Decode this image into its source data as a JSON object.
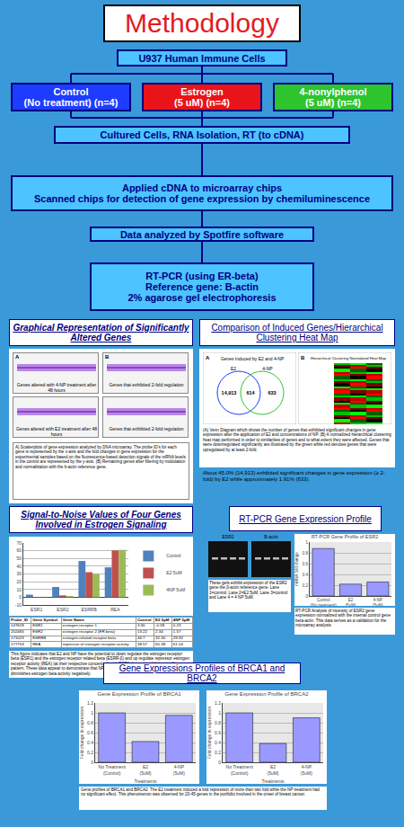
{
  "title": "Methodology",
  "cells": "U937 Human Immune Cells",
  "groups": [
    {
      "label": "Control",
      "sub": "(No treatment) (n=4)",
      "color": "#1e3cff"
    },
    {
      "label": "Estrogen",
      "sub": "(5 uM) (n=4)",
      "color": "#e8141a"
    },
    {
      "label": "4-nonylphenol",
      "sub": "(5 uM) (n=4)",
      "color": "#2ec42e"
    }
  ],
  "steps": [
    [
      "Cultured Cells, RNA Isolation, RT (to cDNA)"
    ],
    [
      "Applied cDNA to microarray chips",
      "Scanned chips for detection of gene expression by chemiluminescence"
    ],
    [
      "Data analyzed by Spotfire software"
    ],
    [
      "RT-PCR (using ER-beta)",
      "Reference gene: B-actin",
      "2% agarose gel electrophoresis"
    ]
  ],
  "graphical": {
    "heading": "Graphical Representation of Significantly Altered Genes",
    "panel_letters": [
      "A",
      "B"
    ],
    "panel_labels": [
      "Genes altered with 4-NP treatment after 48 hours",
      "Genes that exhibited 2-fold regulation",
      "Genes altered with E2 treatment after 48 hours",
      "Genes that exhibited 2-fold regulation"
    ],
    "caption": "A) Scatterplots of gene expression analyzed by DNA microarray. The probe ID's for each gene is represented by the x-axis and the fold changes in gene expression for the experimental samples based on the fluorescence-based detection signals of the mRNA levels in the control are represented by the y-axis. (B) Remaining genes after filtering by modulation and normalization with the b-actin reference gene."
  },
  "comparison": {
    "heading": "Comparison of Induced Genes/Hierarchical Clustering Heat Map",
    "panel_letters": [
      "A",
      "B"
    ],
    "venn_title": "Genes Induced by E2 and 4-NP",
    "venn_sets": [
      "E2",
      "4-NP"
    ],
    "venn_counts": [
      "14,913",
      "614",
      "633"
    ],
    "heatmap_title": "Hierarchical Clustering Normalized Heat Map",
    "caption": "(A) Venn Diagram which shows the number of genes that exhibited significant changes in gene expression after the application of E2 and concentrations of NP. (B) A normalized hierarchical clustering heat map performed in order to similarities of genes and to what extent they were affected. Genes that were downregulated significantly are illustrated by the green while red denotes genes that were upregulated by at least 2-fold.",
    "note": "About 45.0% (14,913) exhibited significant changes in gene expression (≥ 2-fold) by E2 while approximately 1.91% (633)."
  },
  "snr": {
    "heading": "Signal-to-Noise Values of Four Genes Involved in Estrogen Signaling",
    "table": {
      "header": [
        "Probe_ID",
        "Gene Symbol",
        "Gene Name",
        "Control",
        "E2 5µM",
        "4NP 5µM"
      ],
      "rows": [
        [
          "147628",
          "ESR1",
          "estrogen receptor 1",
          "3.30",
          "-0.58",
          "0.23"
        ],
        [
          "202465",
          "ESR2",
          "estrogen receptor 2 (ER beta)",
          "13.22",
          "2.34",
          "1.57"
        ],
        [
          "171023",
          "ESRRB",
          "estrogen-related receptor beta",
          "46.7",
          "32.30",
          "29.92"
        ],
        [
          "177753",
          "REA",
          "repressor of estrogen receptor activity",
          "38.57",
          "60.38",
          "61.04"
        ]
      ]
    },
    "caption": "This figure indicates that E2 and NP have the potential to down regulate the estrogen receptor beta (ESR1) and the estrogen receptor related beta (ESRR-β) and up regulate repressor estrogen receptor activity (REA) (at their respective concentrations). ESR1 does not exhibit a significant pattern. These data appear to demonstrate that NP as well as enhanced estrogen levels diminishes estrogen beta activity negatively."
  },
  "rtpcr": {
    "heading": "RT-PCR Gene Expression Profile",
    "gel_labels": [
      "ESR2",
      "B-actin"
    ],
    "gel_caption": "These gels exhibit expression of the ESR2 gene the β-actin reference gene. Lane 1=control, Lane 2=E2 5uM, Lane 3=control and Lane 4 = 4 NP 5uM.",
    "chart_caption": "RT-PCR Analysis of intensity of ESR2 gene expression normalized with the internal control gene beta-actin. This data serves as a validation for the microarray analysis."
  },
  "brca": {
    "heading": "Gene Expressions Profiles of BRCA1 and BRCA2",
    "caption": "Gene profiles of BRCA1 and BRCA2. The E2 treatment induced a fold repression of more than two fold while the NP treatment had no significant effect. This phenomenon was observed for 23-45 genes in the portfolio involved in the onset of breast cancer."
  },
  "chart_data": [
    {
      "type": "bar",
      "categories": [
        "ESR1",
        "ESR2",
        "ESRRB",
        "REA"
      ],
      "series": [
        {
          "name": "Control",
          "color": "#4f81bd",
          "values": [
            3.3,
            13.22,
            46.7,
            38.57
          ]
        },
        {
          "name": "E2 5uM",
          "color": "#c0504d",
          "values": [
            -0.58,
            2.34,
            32.3,
            60.38
          ]
        },
        {
          "name": "4NP 5uM",
          "color": "#9bbb59",
          "values": [
            0.23,
            1.57,
            29.92,
            61.04
          ]
        }
      ],
      "ylim": [
        -10,
        70
      ],
      "yticks": [
        -10,
        0,
        10,
        20,
        30,
        40,
        50,
        60,
        70
      ],
      "grid": true,
      "legend": "right"
    },
    {
      "type": "bar",
      "title": "RT-PCR Gene Profile of ESR2",
      "y_label": "mRNA fold change",
      "categories": [
        "Control (No treatment)",
        "E2 (5uM)",
        "4-NP (5uM)"
      ],
      "values": [
        0.88,
        0.22,
        0.26
      ],
      "color": "#9999ff",
      "ylim": [
        0,
        1
      ],
      "yticks": [
        0,
        0.2,
        0.4,
        0.6,
        0.8,
        1
      ],
      "grid": true
    },
    {
      "type": "bar",
      "title": "Gene Expression Profile of BRCA1",
      "x_label": "Treatments",
      "y_label": "Fold change in expression",
      "categories": [
        "No Treatment (Control)",
        "E2 (5uM)",
        "4-NP (5uM)"
      ],
      "values": [
        1.0,
        0.42,
        0.95
      ],
      "color": "#9999ff",
      "ylim": [
        0,
        1.2
      ],
      "yticks": [
        0,
        0.2,
        0.4,
        0.6,
        0.8,
        1,
        1.2
      ],
      "grid": true
    },
    {
      "type": "bar",
      "title": "Gene Expression Profile of BRCA2",
      "x_label": "Treatments",
      "y_label": "Fold change in expression",
      "categories": [
        "No Treatment (Control)",
        "E2 (5uM)",
        "4-NP (5uM)"
      ],
      "values": [
        1.0,
        0.38,
        0.9
      ],
      "color": "#9999ff",
      "ylim": [
        0,
        1.2
      ],
      "yticks": [
        0,
        0.2,
        0.4,
        0.6,
        0.8,
        1,
        1.2
      ],
      "grid": true
    }
  ]
}
